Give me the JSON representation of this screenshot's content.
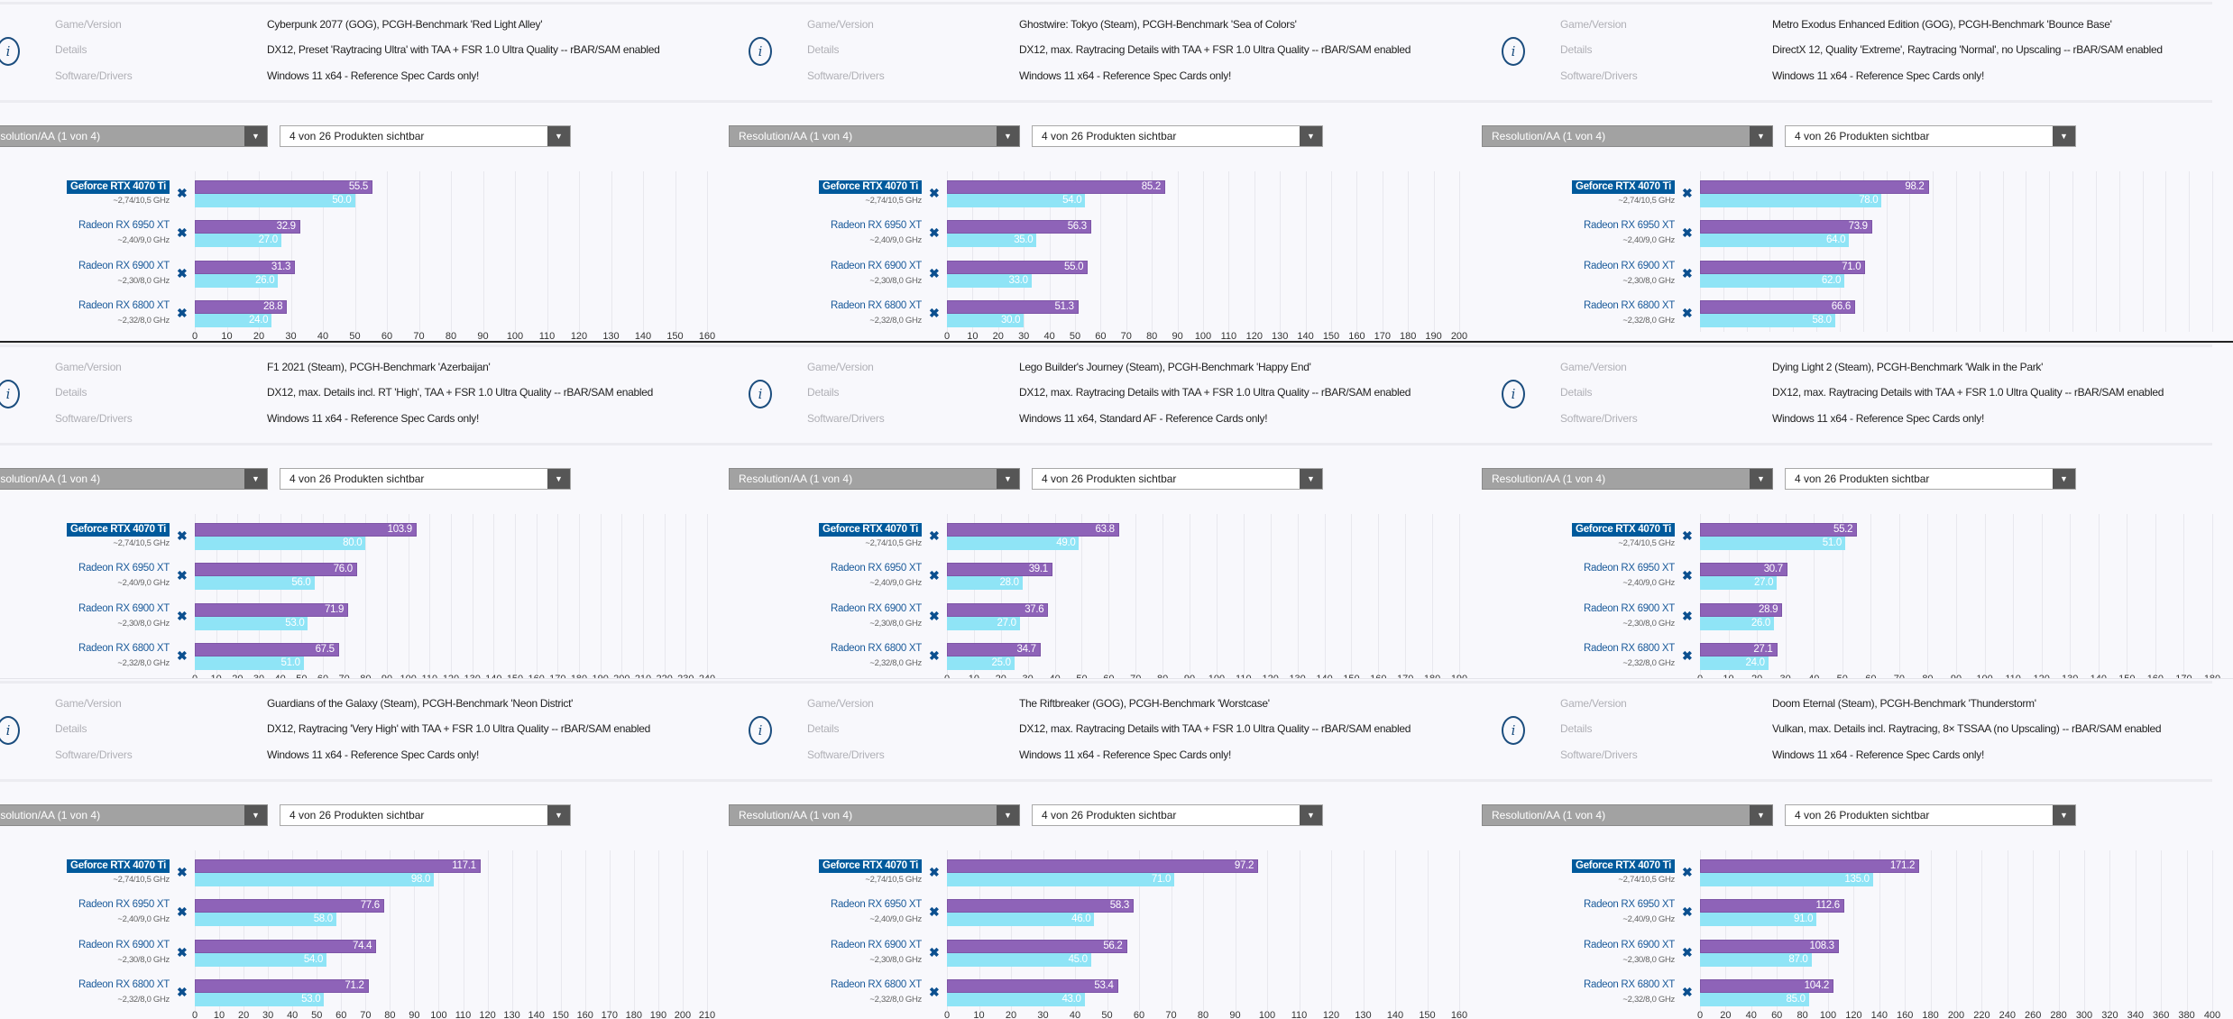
{
  "labels": {
    "game": "Game/Version",
    "details": "Details",
    "software": "Software/Drivers"
  },
  "controls": {
    "resolution": "Resolution/AA (1 von 4)",
    "products": "4 von 26 Produkten sichtbar"
  },
  "icons": {
    "info": "info-icon",
    "arrow": "▼",
    "remove": "✖"
  },
  "colors": {
    "series_1": "#8e63b8",
    "series_2": "#8fe4f6",
    "highlight": "#005a9c"
  },
  "cards": [
    {
      "name": "Geforce RTX 4070 Ti",
      "clock": "~2,74/10,5 GHz",
      "highlight": true
    },
    {
      "name": "Radeon RX 6950 XT",
      "clock": "~2,40/9,0 GHz"
    },
    {
      "name": "Radeon RX 6900 XT",
      "clock": "~2,30/8,0 GHz"
    },
    {
      "name": "Radeon RX 6800 XT",
      "clock": "~2,32/8,0 GHz"
    }
  ],
  "chart_data": [
    {
      "type": "bar",
      "game": "Cyberpunk 2077 (GOG), PCGH-Benchmark 'Red Light Alley'",
      "details": "DX12, Preset 'Raytracing Ultra' with TAA + FSR 1.0 Ultra Quality -- rBAR/SAM enabled",
      "software": "Windows 11 x64 - Reference Spec Cards only!",
      "xlim": [
        0,
        160
      ],
      "tick_step": 10,
      "ticks_visible": true,
      "series": [
        {
          "values": [
            55.5,
            32.9,
            31.3,
            28.8
          ]
        },
        {
          "values": [
            50.0,
            27.0,
            26.0,
            24.0
          ]
        }
      ]
    },
    {
      "type": "bar",
      "game": "Ghostwire: Tokyo (Steam), PCGH-Benchmark 'Sea of Colors'",
      "details": "DX12, max. Raytracing Details with TAA + FSR 1.0 Ultra Quality -- rBAR/SAM enabled",
      "software": "Windows 11 x64 - Reference Spec Cards only!",
      "xlim": [
        0,
        200
      ],
      "tick_step": 10,
      "ticks_visible": true,
      "series": [
        {
          "values": [
            85.2,
            56.3,
            55.0,
            51.3
          ]
        },
        {
          "values": [
            54.0,
            35.0,
            33.0,
            30.0
          ]
        }
      ]
    },
    {
      "type": "bar",
      "game": "Metro Exodus Enhanced Edition (GOG), PCGH-Benchmark 'Bounce Base'",
      "details": "DirectX 12, Quality 'Extreme', Raytracing 'Normal', no Upscaling -- rBAR/SAM enabled",
      "software": "Windows 11 x64 - Reference Spec Cards only!",
      "xlim": [
        0,
        220
      ],
      "tick_step": 10,
      "ticks_visible": false,
      "series": [
        {
          "values": [
            98.2,
            73.9,
            71.0,
            66.6
          ]
        },
        {
          "values": [
            78.0,
            64.0,
            62.0,
            58.0
          ]
        }
      ]
    },
    {
      "type": "bar",
      "game": "F1 2021 (Steam), PCGH-Benchmark 'Azerbaijan'",
      "details": "DX12, max. Details incl. RT 'High', TAA + FSR 1.0 Ultra Quality -- rBAR/SAM enabled",
      "software": "Windows 11 x64 - Reference Spec Cards only!",
      "xlim": [
        0,
        240
      ],
      "tick_step": 10,
      "ticks_visible": true,
      "series": [
        {
          "values": [
            103.9,
            76.0,
            71.9,
            67.5
          ]
        },
        {
          "values": [
            80.0,
            56.0,
            53.0,
            51.0
          ]
        }
      ]
    },
    {
      "type": "bar",
      "game": "Lego Builder's Journey (Steam), PCGH-Benchmark 'Happy End'",
      "details": "DX12, max. Raytracing Details with TAA + FSR 1.0 Ultra Quality -- rBAR/SAM enabled",
      "software": "Windows 11 x64, Standard AF - Reference Cards only!",
      "xlim": [
        0,
        190
      ],
      "tick_step": 10,
      "ticks_visible": true,
      "series": [
        {
          "values": [
            63.8,
            39.1,
            37.6,
            34.7
          ]
        },
        {
          "values": [
            49.0,
            28.0,
            27.0,
            25.0
          ]
        }
      ]
    },
    {
      "type": "bar",
      "game": "Dying Light 2 (Steam), PCGH-Benchmark 'Walk in the Park'",
      "details": "DX12, max. Raytracing Details with TAA + FSR 1.0 Ultra Quality -- rBAR/SAM enabled",
      "software": "Windows 11 x64 - Reference Spec Cards only!",
      "xlim": [
        0,
        180
      ],
      "tick_step": 10,
      "ticks_visible": true,
      "series": [
        {
          "values": [
            55.2,
            30.7,
            28.9,
            27.1
          ]
        },
        {
          "values": [
            51.0,
            27.0,
            26.0,
            24.0
          ]
        }
      ]
    },
    {
      "type": "bar",
      "game": "Guardians of the Galaxy (Steam), PCGH-Benchmark 'Neon District'",
      "details": "DX12, Raytracing 'Very High' with TAA + FSR 1.0 Ultra Quality -- rBAR/SAM enabled",
      "software": "Windows 11 x64 - Reference Spec Cards only!",
      "xlim": [
        0,
        210
      ],
      "tick_step": 10,
      "ticks_visible": true,
      "series": [
        {
          "values": [
            117.1,
            77.6,
            74.4,
            71.2
          ]
        },
        {
          "values": [
            98.0,
            58.0,
            54.0,
            53.0
          ]
        }
      ]
    },
    {
      "type": "bar",
      "game": "The Riftbreaker (GOG), PCGH-Benchmark 'Worstcase'",
      "details": "DX12, max. Raytracing Details with TAA + FSR 1.0 Ultra Quality -- rBAR/SAM enabled",
      "software": "Windows 11 x64 - Reference Spec Cards only!",
      "xlim": [
        0,
        160
      ],
      "tick_step": 10,
      "ticks_visible": true,
      "series": [
        {
          "values": [
            97.2,
            58.3,
            56.2,
            53.4
          ]
        },
        {
          "values": [
            71.0,
            46.0,
            45.0,
            43.0
          ]
        }
      ]
    },
    {
      "type": "bar",
      "game": "Doom Eternal (Steam), PCGH-Benchmark 'Thunderstorm'",
      "details": "Vulkan, max. Details incl. Raytracing, 8× TSSAA (no Upscaling) -- rBAR/SAM enabled",
      "software": "Windows 11 x64 - Reference Spec Cards only!",
      "xlim": [
        0,
        400
      ],
      "tick_step": 20,
      "ticks_visible": true,
      "series": [
        {
          "values": [
            171.2,
            112.6,
            108.3,
            104.2
          ]
        },
        {
          "values": [
            135.0,
            91.0,
            87.0,
            85.0
          ]
        }
      ]
    }
  ]
}
